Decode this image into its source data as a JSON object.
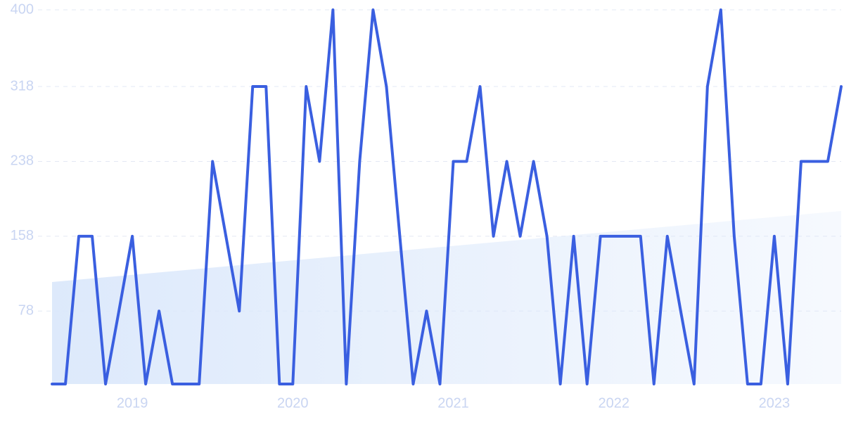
{
  "chart_data": {
    "type": "line",
    "categories": [
      null,
      null,
      null,
      null,
      null,
      null,
      "2019",
      null,
      null,
      null,
      null,
      null,
      null,
      null,
      null,
      null,
      null,
      null,
      "2020",
      null,
      null,
      null,
      null,
      null,
      null,
      null,
      null,
      null,
      null,
      null,
      "2021",
      null,
      null,
      null,
      null,
      null,
      null,
      null,
      null,
      null,
      null,
      null,
      "2022",
      null,
      null,
      null,
      null,
      null,
      null,
      null,
      null,
      null,
      null,
      null,
      "2023",
      null,
      null,
      null,
      null,
      null
    ],
    "series": [
      {
        "color": "#3a5fe0",
        "values": [
          0,
          0,
          158,
          158,
          0,
          78,
          158,
          0,
          78,
          0,
          0,
          0,
          238,
          158,
          78,
          318,
          318,
          0,
          0,
          318,
          238,
          400,
          0,
          238,
          400,
          318,
          158,
          0,
          78,
          0,
          238,
          238,
          318,
          158,
          238,
          158,
          238,
          158,
          0,
          158,
          0,
          158,
          158,
          158,
          158,
          0,
          158,
          78,
          0,
          318,
          400,
          158,
          0,
          0,
          158,
          0,
          238,
          238,
          238,
          318
        ]
      }
    ],
    "trend": {
      "color": "#dbe8fb",
      "values": [
        109,
        185
      ]
    },
    "ylim": [
      0,
      400
    ],
    "yticks": [
      78,
      158,
      238,
      318,
      400
    ],
    "grid": true
  }
}
